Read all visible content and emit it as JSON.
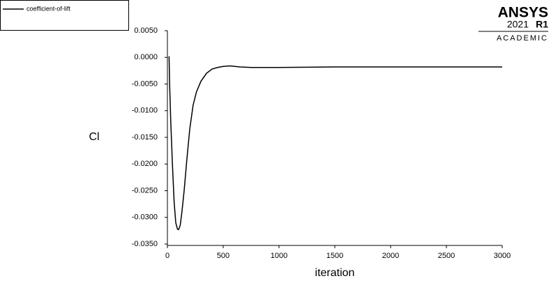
{
  "chart_data": {
    "type": "line",
    "x_label": "iteration",
    "y_label": "Cl",
    "x": [
      15,
      20,
      30,
      45,
      60,
      75,
      90,
      100,
      115,
      130,
      150,
      175,
      200,
      230,
      260,
      300,
      350,
      400,
      450,
      500,
      560,
      650,
      750,
      1000,
      1500,
      2000,
      2500,
      3000
    ],
    "series": [
      {
        "name": "coefficient-of-lift",
        "color": "#000000",
        "values": [
          0.0002,
          -0.005,
          -0.012,
          -0.02,
          -0.027,
          -0.031,
          -0.0322,
          -0.0323,
          -0.0315,
          -0.029,
          -0.025,
          -0.019,
          -0.0135,
          -0.009,
          -0.0065,
          -0.0045,
          -0.003,
          -0.0022,
          -0.0019,
          -0.0017,
          -0.0016,
          -0.0018,
          -0.0019,
          -0.0019,
          -0.0018,
          -0.0018,
          -0.0018,
          -0.0018
        ]
      }
    ],
    "xlim": [
      0,
      3000
    ],
    "xticks": [
      0,
      500,
      1000,
      1500,
      2000,
      2500,
      3000
    ],
    "ylim": [
      -0.035,
      0.005
    ],
    "yticks": [
      {
        "value": 0.005,
        "label": "0.0050"
      },
      {
        "value": 0,
        "label": "0.0000"
      },
      {
        "value": -0.005,
        "label": "-0.0050"
      },
      {
        "value": -0.01,
        "label": "-0.0100"
      },
      {
        "value": -0.015,
        "label": "-0.0150"
      },
      {
        "value": -0.02,
        "label": "-0.0200"
      },
      {
        "value": -0.025,
        "label": "-0.0250"
      },
      {
        "value": -0.03,
        "label": "-0.0300"
      },
      {
        "value": -0.035,
        "label": "-0.0350"
      }
    ],
    "grid": false,
    "legend": "top-left"
  },
  "logo": {
    "name": "ANSYS",
    "version": "2021",
    "release": "R1",
    "edition": "ACADEMIC"
  }
}
